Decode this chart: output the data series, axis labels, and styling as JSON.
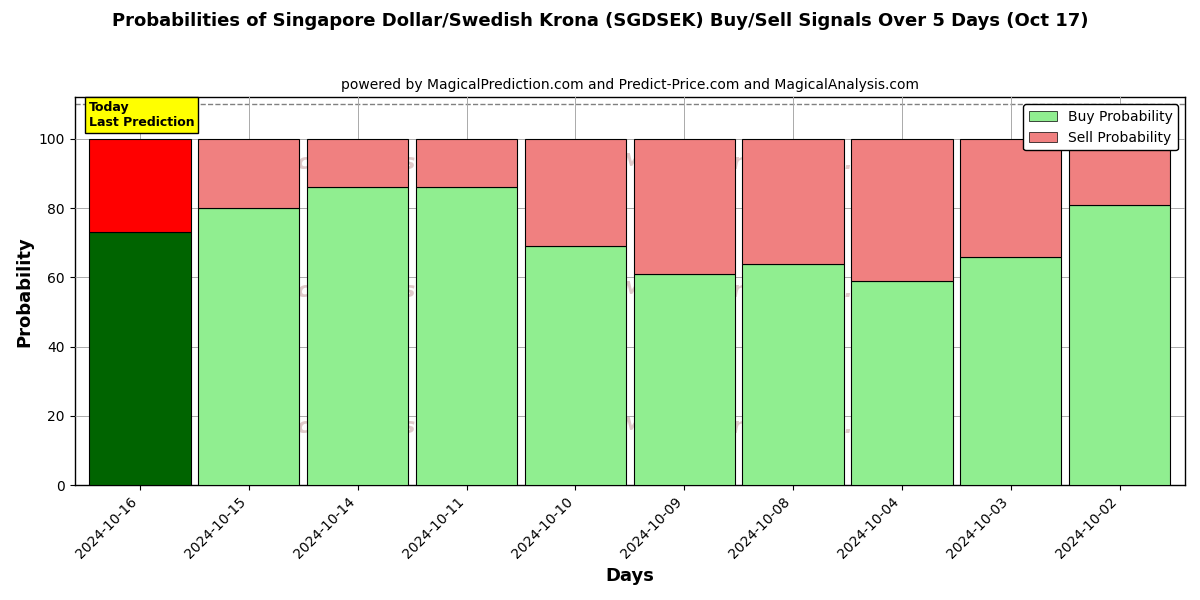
{
  "title": "Probabilities of Singapore Dollar/Swedish Krona (SGDSEK) Buy/Sell Signals Over 5 Days (Oct 17)",
  "subtitle": "powered by MagicalPrediction.com and Predict-Price.com and MagicalAnalysis.com",
  "xlabel": "Days",
  "ylabel": "Probability",
  "categories": [
    "2024-10-16",
    "2024-10-15",
    "2024-10-14",
    "2024-10-11",
    "2024-10-10",
    "2024-10-09",
    "2024-10-08",
    "2024-10-04",
    "2024-10-03",
    "2024-10-02"
  ],
  "buy_values": [
    73,
    80,
    86,
    86,
    69,
    61,
    64,
    59,
    66,
    81
  ],
  "sell_values": [
    27,
    20,
    14,
    14,
    31,
    39,
    36,
    41,
    34,
    19
  ],
  "today_index": 0,
  "buy_color_today": "#006400",
  "sell_color_today": "#FF0000",
  "buy_color_normal": "#90EE90",
  "sell_color_normal": "#F08080",
  "today_label_bg": "#FFFF00",
  "today_label_text": "Today\nLast Prediction",
  "ylim": [
    0,
    112
  ],
  "yticks": [
    0,
    20,
    40,
    60,
    80,
    100
  ],
  "grid_color": "#aaaaaa",
  "watermark_left": "calAnalysis.com",
  "watermark_right": "MagicalPrediction.com",
  "watermark_left2": "calAnalysis.com",
  "watermark_right2": "MagicalPrediction.com",
  "legend_buy_label": "Buy Probability",
  "legend_sell_label": "Sell Probability",
  "bar_width": 0.93,
  "dashed_line_y": 110,
  "figsize": [
    12,
    6
  ],
  "dpi": 100,
  "bg_color": "#ffffff"
}
